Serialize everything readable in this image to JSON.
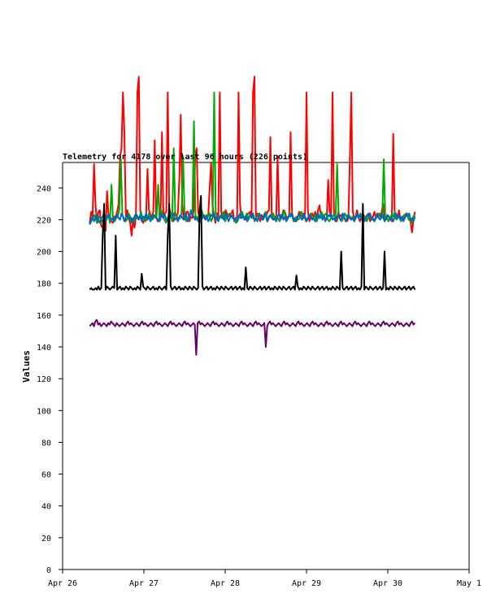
{
  "chart_data": {
    "type": "line",
    "title": "Telemetry for 4178 over last 96 hours (226 points)",
    "xlabel": "",
    "ylabel": "Values",
    "ylim": [
      0,
      256
    ],
    "yticks": [
      0,
      20,
      40,
      60,
      80,
      100,
      120,
      140,
      160,
      180,
      200,
      220,
      240
    ],
    "xlim": [
      "2025-04-26",
      "2025-05-01"
    ],
    "xticks": [
      "Apr 26",
      "Apr 27",
      "Apr 28",
      "Apr 29",
      "Apr 30",
      "May 1"
    ],
    "grid": false,
    "legend": "none",
    "x_start": "2025-04-26T08:00",
    "x_end": "2025-04-30T08:00",
    "series": [
      {
        "color": "#ff0000",
        "values": [
          218,
          225,
          222,
          255,
          230,
          218,
          225,
          226,
          216,
          215,
          221,
          213,
          238,
          223,
          220,
          219,
          218,
          222,
          222,
          225,
          230,
          260,
          265,
          300,
          275,
          222,
          226,
          221,
          218,
          210,
          220,
          215,
          222,
          300,
          310,
          225,
          221,
          218,
          220,
          222,
          252,
          226,
          223,
          222,
          225,
          270,
          222,
          219,
          221,
          220,
          275,
          221,
          224,
          225,
          300,
          228,
          224,
          222,
          219,
          225,
          222,
          224,
          245,
          286,
          230,
          221,
          220,
          225,
          225,
          219,
          222,
          221,
          226,
          260,
          265,
          225,
          221,
          223,
          221,
          222,
          220,
          221,
          222,
          240,
          256,
          229,
          223,
          218,
          224,
          222,
          300,
          225,
          222,
          221,
          226,
          224,
          222,
          223,
          224,
          226,
          219,
          221,
          222,
          300,
          230,
          221,
          222,
          221,
          220,
          223,
          224,
          225,
          221,
          300,
          310,
          222,
          224,
          222,
          219,
          223,
          221,
          223,
          222,
          225,
          226,
          272,
          221,
          220,
          222,
          219,
          260,
          224,
          220,
          222,
          226,
          225,
          222,
          221,
          223,
          275,
          224,
          221,
          219,
          220,
          222,
          225,
          223,
          222,
          221,
          224,
          300,
          225,
          219,
          222,
          224,
          221,
          225,
          221,
          226,
          229,
          222,
          221,
          223,
          220,
          221,
          245,
          225,
          222,
          300,
          224,
          221,
          219,
          225,
          222,
          223,
          222,
          221,
          220,
          219,
          221,
          258,
          300,
          225,
          221,
          222,
          226,
          221,
          219,
          222,
          224,
          222,
          220,
          223,
          224,
          219,
          221,
          222,
          225,
          221,
          224,
          223,
          222,
          225,
          230,
          221,
          220,
          223,
          222,
          221,
          219,
          274,
          225,
          222,
          221,
          226,
          220,
          222,
          221,
          223,
          224,
          222,
          220,
          219,
          212,
          220,
          225
        ]
      },
      {
        "color": "#00aa00",
        "values": [
          217,
          219,
          221,
          223,
          220,
          218,
          222,
          221,
          219,
          220,
          221,
          222,
          223,
          218,
          242,
          220,
          219,
          221,
          222,
          226,
          258,
          223,
          221,
          219,
          220,
          224,
          222,
          218,
          221,
          220,
          223,
          222,
          221,
          225,
          220,
          222,
          219,
          221,
          224,
          222,
          220,
          221,
          223,
          222,
          242,
          219,
          226,
          222,
          220,
          218,
          221,
          222,
          224,
          219,
          265,
          223,
          222,
          220,
          221,
          224,
          260,
          222,
          219,
          221,
          222,
          225,
          223,
          282,
          221,
          222,
          220,
          219,
          226,
          222,
          221,
          223,
          222,
          224,
          219,
          221,
          300,
          224,
          222,
          220,
          222,
          221,
          225,
          219,
          222,
          223,
          224,
          222,
          221,
          220,
          218,
          219,
          222,
          221,
          225,
          221,
          222,
          224,
          220,
          223,
          221,
          222,
          219,
          221,
          223,
          224,
          222,
          220,
          221,
          225,
          219,
          222,
          223,
          221,
          224,
          220,
          222,
          221,
          219,
          223,
          222,
          226,
          221,
          220,
          222,
          224,
          223,
          219,
          221,
          222,
          220,
          221,
          225,
          223,
          222,
          219,
          221,
          222,
          224,
          220,
          221,
          223,
          219,
          222,
          221,
          225,
          222,
          223,
          224,
          220,
          219,
          221,
          222,
          223,
          221,
          255,
          222,
          220,
          219,
          221,
          224,
          222,
          223,
          221,
          220,
          222,
          219,
          221,
          223,
          222,
          224,
          220,
          221,
          222,
          219,
          221,
          223,
          222,
          220,
          219,
          221,
          222,
          224,
          223,
          221,
          258,
          220,
          222,
          219,
          221,
          223,
          222,
          225,
          220,
          221,
          222,
          219,
          221,
          223,
          222,
          224,
          220,
          221,
          218,
          222,
          223
        ]
      },
      {
        "color": "#0066cc",
        "values": [
          217,
          220,
          222,
          219,
          221,
          223,
          220,
          218,
          221,
          222,
          224,
          219,
          221,
          223,
          222,
          220,
          221,
          219,
          222,
          223,
          221,
          220,
          224,
          222,
          219,
          221,
          223,
          222,
          220,
          221,
          218,
          222,
          224,
          221,
          220,
          223,
          219,
          222,
          221,
          224,
          220,
          222,
          219,
          221,
          223,
          222,
          221,
          220,
          219,
          224,
          222,
          221,
          223,
          220,
          219,
          221,
          222,
          223,
          224,
          220,
          221,
          219,
          222,
          223,
          221,
          220,
          224,
          222,
          219,
          221,
          226,
          223,
          222,
          220,
          221,
          219,
          222,
          224,
          221,
          223,
          220,
          222,
          219,
          221,
          223,
          222,
          224,
          220,
          221,
          219,
          222,
          223,
          221,
          220,
          224,
          222,
          219,
          221,
          223,
          222,
          220,
          221,
          219,
          222,
          224,
          221,
          223,
          220,
          222,
          219,
          221,
          223,
          222,
          224,
          220,
          221,
          219,
          222,
          223,
          221,
          220,
          224,
          222,
          219,
          221,
          223,
          222,
          220,
          221,
          219,
          222,
          224,
          221,
          223,
          220,
          222,
          219,
          221,
          223,
          222,
          224,
          220,
          221,
          219,
          222,
          223,
          221,
          220,
          224,
          222,
          219,
          221,
          223,
          222,
          220,
          221,
          219,
          222,
          224,
          221,
          223,
          220,
          222,
          219,
          221,
          223,
          222,
          224,
          220,
          221,
          219,
          222,
          223,
          221,
          220,
          224,
          222,
          219,
          221,
          223,
          222,
          220,
          221,
          219,
          222,
          224,
          221,
          223,
          220,
          222,
          219,
          221,
          223,
          222,
          224,
          220,
          221,
          219,
          222,
          223,
          221,
          220,
          224,
          222,
          219,
          221,
          223,
          222,
          220,
          221,
          219,
          222,
          224,
          221,
          223,
          220,
          222,
          219,
          221,
          223,
          222,
          224,
          220,
          221,
          219,
          222
        ]
      },
      {
        "color": "#000000",
        "values": [
          176,
          177,
          176,
          176,
          177,
          176,
          178,
          176,
          177,
          210,
          230,
          176,
          178,
          177,
          176,
          177,
          178,
          177,
          210,
          176,
          177,
          178,
          176,
          177,
          176,
          178,
          177,
          176,
          178,
          177,
          176,
          177,
          176,
          178,
          177,
          176,
          186,
          178,
          177,
          176,
          178,
          177,
          176,
          177,
          178,
          176,
          177,
          176,
          178,
          177,
          176,
          177,
          178,
          176,
          210,
          230,
          178,
          176,
          177,
          178,
          176,
          177,
          178,
          176,
          177,
          176,
          178,
          177,
          176,
          178,
          177,
          176,
          178,
          177,
          176,
          177,
          225,
          235,
          178,
          176,
          177,
          178,
          176,
          177,
          178,
          176,
          177,
          176,
          178,
          177,
          176,
          178,
          177,
          176,
          178,
          177,
          176,
          177,
          178,
          176,
          177,
          178,
          176,
          177,
          178,
          176,
          177,
          176,
          190,
          177,
          176,
          178,
          177,
          176,
          178,
          177,
          176,
          177,
          178,
          176,
          177,
          178,
          176,
          177,
          178,
          176,
          177,
          176,
          178,
          177,
          176,
          178,
          177,
          176,
          178,
          177,
          176,
          177,
          178,
          176,
          177,
          178,
          176,
          185,
          178,
          176,
          177,
          176,
          178,
          177,
          176,
          178,
          177,
          176,
          178,
          177,
          176,
          177,
          178,
          176,
          177,
          178,
          176,
          177,
          178,
          176,
          177,
          176,
          178,
          177,
          176,
          178,
          177,
          176,
          200,
          177,
          176,
          177,
          178,
          176,
          177,
          178,
          176,
          177,
          178,
          176,
          177,
          176,
          178,
          230,
          176,
          178,
          177,
          176,
          178,
          177,
          176,
          177,
          178,
          176,
          177,
          178,
          176,
          177,
          200,
          176,
          177,
          176,
          178,
          177,
          176,
          178,
          177,
          176,
          178,
          177,
          176,
          177,
          178,
          176,
          177,
          178,
          176,
          177,
          178,
          176
        ]
      },
      {
        "color": "#660066",
        "values": [
          153,
          154,
          155,
          153,
          156,
          157,
          154,
          155,
          153,
          154,
          155,
          154,
          153,
          155,
          154,
          156,
          155,
          154,
          153,
          155,
          154,
          153,
          154,
          155,
          154,
          153,
          155,
          156,
          154,
          155,
          154,
          153,
          154,
          155,
          154,
          153,
          155,
          156,
          154,
          155,
          154,
          153,
          154,
          155,
          154,
          153,
          155,
          156,
          154,
          155,
          154,
          153,
          154,
          155,
          154,
          153,
          155,
          156,
          154,
          155,
          154,
          153,
          154,
          155,
          154,
          153,
          155,
          156,
          154,
          155,
          154,
          153,
          154,
          155,
          154,
          135,
          155,
          156,
          154,
          155,
          154,
          153,
          154,
          155,
          154,
          153,
          155,
          156,
          154,
          155,
          154,
          153,
          154,
          155,
          154,
          153,
          155,
          156,
          154,
          155,
          154,
          153,
          154,
          155,
          154,
          153,
          155,
          156,
          154,
          155,
          154,
          153,
          154,
          155,
          154,
          153,
          155,
          156,
          154,
          155,
          154,
          153,
          154,
          155,
          140,
          153,
          155,
          156,
          154,
          155,
          154,
          153,
          154,
          155,
          154,
          153,
          155,
          156,
          154,
          155,
          154,
          153,
          154,
          155,
          154,
          153,
          155,
          156,
          154,
          155,
          154,
          153,
          154,
          155,
          154,
          153,
          155,
          156,
          154,
          155,
          154,
          153,
          154,
          155,
          154,
          153,
          155,
          156,
          154,
          155,
          154,
          153,
          154,
          155,
          154,
          153,
          155,
          156,
          154,
          155,
          154,
          153,
          154,
          155,
          154,
          153,
          155,
          156,
          154,
          155,
          154,
          153,
          154,
          155,
          154,
          153,
          155,
          156,
          154,
          155,
          154,
          153,
          154,
          155,
          154,
          153,
          155,
          156,
          154,
          155,
          154,
          153,
          154,
          155,
          154,
          153,
          155,
          156,
          154,
          155,
          154,
          153,
          154,
          155,
          154,
          153,
          155,
          156,
          154,
          155
        ]
      }
    ]
  }
}
